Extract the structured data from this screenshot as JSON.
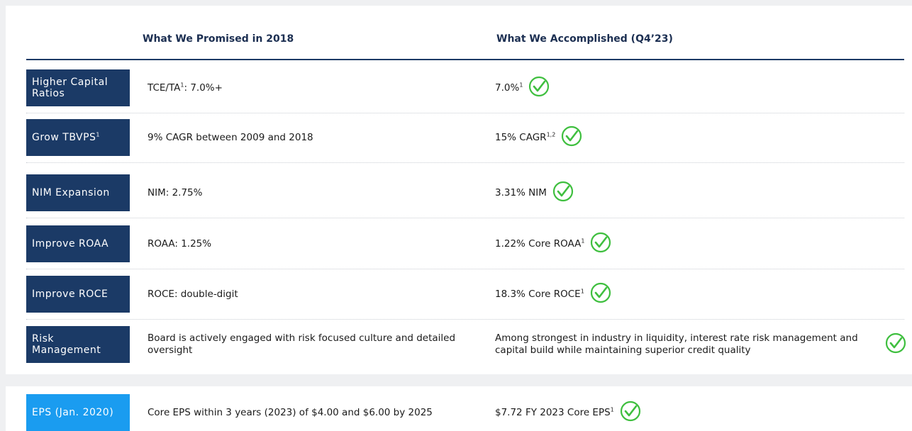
{
  "header": {
    "promised": "What We Promised in 2018",
    "accomplished": "What We Accomplished (Q4’23)"
  },
  "rows": [
    {
      "label": [
        {
          "text": "Higher Capital Ratios"
        }
      ],
      "promised": [
        {
          "text": "TCE/TA"
        },
        {
          "sup": "1"
        },
        {
          "text": ": 7.0%+"
        }
      ],
      "accomplished": [
        {
          "text": "7.0%"
        },
        {
          "sup": "1"
        }
      ]
    },
    {
      "label": [
        {
          "text": "Grow TBVPS"
        },
        {
          "sup": "1"
        }
      ],
      "promised": [
        {
          "text": "9% CAGR between 2009 and 2018"
        }
      ],
      "accomplished": [
        {
          "text": "15% CAGR"
        },
        {
          "sup": "1,2"
        }
      ]
    },
    {
      "label": [
        {
          "text": "NIM Expansion"
        }
      ],
      "promised": [
        {
          "text": "NIM: 2.75%"
        }
      ],
      "accomplished": [
        {
          "text": "3.31% NIM"
        }
      ]
    },
    {
      "label": [
        {
          "text": "Improve ROAA"
        }
      ],
      "promised": [
        {
          "text": "ROAA: 1.25%"
        }
      ],
      "accomplished": [
        {
          "text": "1.22% Core ROAA"
        },
        {
          "sup": "1"
        }
      ]
    },
    {
      "label": [
        {
          "text": "Improve ROCE"
        }
      ],
      "promised": [
        {
          "text": "ROCE: double-digit"
        }
      ],
      "accomplished": [
        {
          "text": "18.3% Core ROCE"
        },
        {
          "sup": "1"
        }
      ]
    },
    {
      "label": [
        {
          "text": "Risk Management"
        }
      ],
      "promised": [
        {
          "text": "Board is actively engaged with risk focused culture and detailed oversight"
        }
      ],
      "accomplished": [
        {
          "text": "Among strongest in industry in liquidity, interest rate risk management and capital build while maintaining superior credit quality"
        }
      ]
    }
  ],
  "eps": {
    "label": [
      {
        "text": "EPS (Jan. 2020)"
      }
    ],
    "promised": [
      {
        "text": "Core EPS within 3 years (2023) of $4.00 and $6.00 by 2025"
      }
    ],
    "accomplished": [
      {
        "text": "$7.72 FY 2023 Core EPS"
      },
      {
        "sup": "1"
      }
    ]
  }
}
